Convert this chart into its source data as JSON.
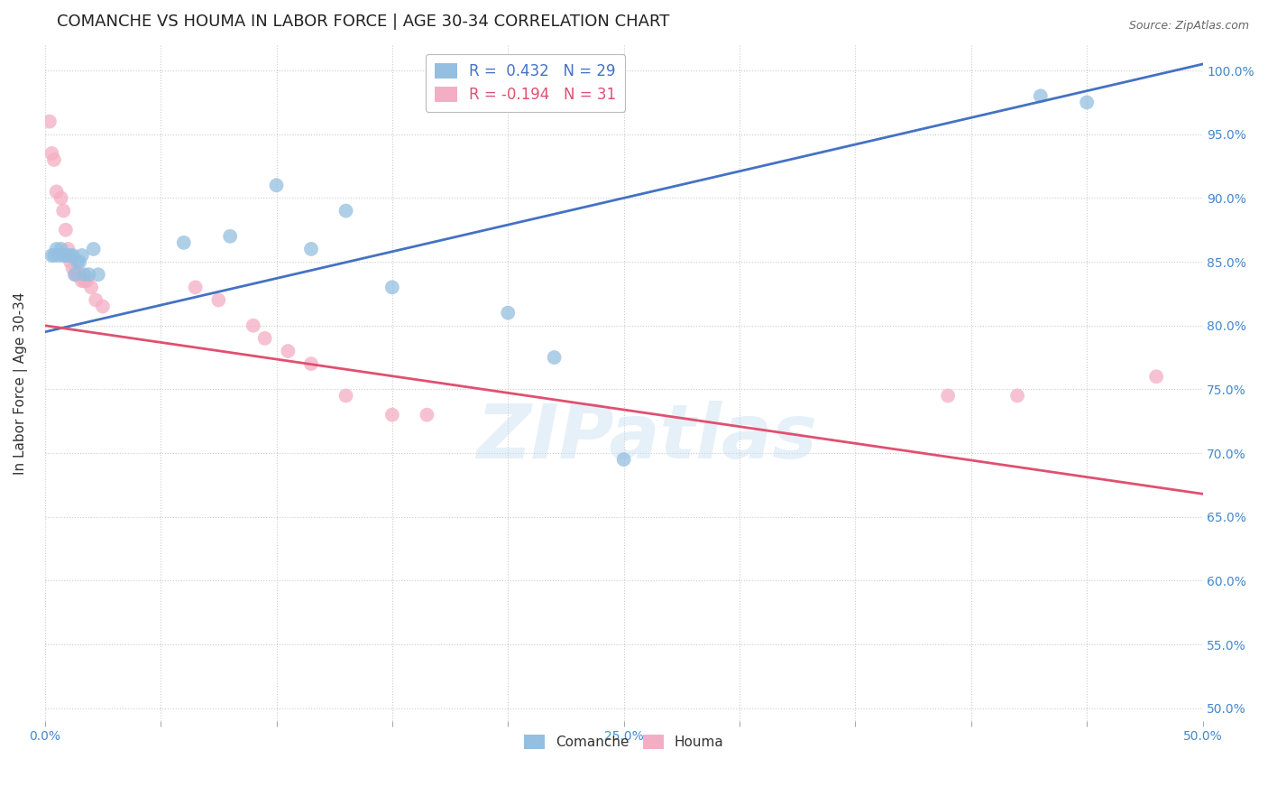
{
  "title": "COMANCHE VS HOUMA IN LABOR FORCE | AGE 30-34 CORRELATION CHART",
  "source": "Source: ZipAtlas.com",
  "ylabel": "In Labor Force | Age 30-34",
  "xlim": [
    0.0,
    0.5
  ],
  "ylim": [
    0.49,
    1.02
  ],
  "ytick_labels": [
    "50.0%",
    "55.0%",
    "60.0%",
    "65.0%",
    "70.0%",
    "75.0%",
    "80.0%",
    "85.0%",
    "90.0%",
    "95.0%",
    "100.0%"
  ],
  "ytick_values": [
    0.5,
    0.55,
    0.6,
    0.65,
    0.7,
    0.75,
    0.8,
    0.85,
    0.9,
    0.95,
    1.0
  ],
  "xtick_labels": [
    "0.0%",
    "",
    "",
    "",
    "",
    "25.0%",
    "",
    "",
    "",
    "",
    "50.0%"
  ],
  "xtick_values": [
    0.0,
    0.05,
    0.1,
    0.15,
    0.2,
    0.25,
    0.3,
    0.35,
    0.4,
    0.45,
    0.5
  ],
  "comanche_R": 0.432,
  "comanche_N": 29,
  "houma_R": -0.194,
  "houma_N": 31,
  "comanche_color": "#94bfe0",
  "houma_color": "#f4aec4",
  "comanche_line_color": "#4472c4",
  "houma_line_color": "#e05070",
  "watermark": "ZIPatlas",
  "comanche_x": [
    0.003,
    0.004,
    0.005,
    0.006,
    0.007,
    0.008,
    0.009,
    0.01,
    0.011,
    0.012,
    0.013,
    0.014,
    0.015,
    0.016,
    0.017,
    0.019,
    0.021,
    0.023,
    0.06,
    0.08,
    0.1,
    0.115,
    0.13,
    0.15,
    0.2,
    0.22,
    0.25,
    0.43,
    0.45
  ],
  "comanche_y": [
    0.855,
    0.855,
    0.86,
    0.855,
    0.86,
    0.855,
    0.855,
    0.855,
    0.855,
    0.855,
    0.84,
    0.85,
    0.85,
    0.855,
    0.84,
    0.84,
    0.86,
    0.84,
    0.865,
    0.87,
    0.91,
    0.86,
    0.89,
    0.83,
    0.81,
    0.775,
    0.695,
    0.98,
    0.975
  ],
  "houma_x": [
    0.002,
    0.003,
    0.004,
    0.005,
    0.007,
    0.008,
    0.009,
    0.01,
    0.011,
    0.012,
    0.013,
    0.014,
    0.015,
    0.016,
    0.017,
    0.018,
    0.02,
    0.022,
    0.025,
    0.065,
    0.075,
    0.09,
    0.095,
    0.105,
    0.115,
    0.13,
    0.15,
    0.165,
    0.39,
    0.42,
    0.48
  ],
  "houma_y": [
    0.96,
    0.935,
    0.93,
    0.905,
    0.9,
    0.89,
    0.875,
    0.86,
    0.85,
    0.845,
    0.84,
    0.84,
    0.84,
    0.835,
    0.835,
    0.835,
    0.83,
    0.82,
    0.815,
    0.83,
    0.82,
    0.8,
    0.79,
    0.78,
    0.77,
    0.745,
    0.73,
    0.73,
    0.745,
    0.745,
    0.76
  ],
  "bg_color": "#ffffff",
  "grid_color": "#cccccc",
  "axis_color": "#4488cc",
  "title_fontsize": 13,
  "label_fontsize": 11,
  "tick_fontsize": 10,
  "dot_size": 130
}
